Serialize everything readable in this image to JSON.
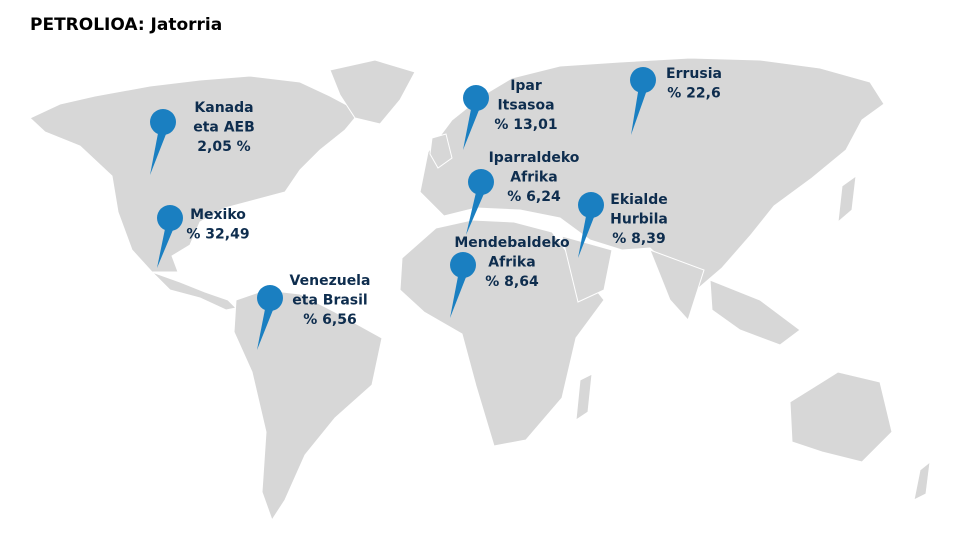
{
  "header": {
    "title": "PETROLIOA: Jatorria"
  },
  "markers": [
    {
      "name": [
        "Kanada",
        "eta AEB"
      ],
      "value": "2,05 %"
    },
    {
      "name": [
        "Mexiko"
      ],
      "value": "% 32,49"
    },
    {
      "name": [
        "Venezuela",
        "eta Brasil"
      ],
      "value": "% 6,56"
    },
    {
      "name": [
        "Ipar",
        "Itsasoa"
      ],
      "value": "% 13,01"
    },
    {
      "name": [
        "Iparraldeko",
        "Afrika"
      ],
      "value": "% 6,24"
    },
    {
      "name": [
        "Mendebaldeko",
        "Afrika"
      ],
      "value": "% 8,64"
    },
    {
      "name": [
        "Ekialde",
        "Hurbila"
      ],
      "value": "% 8,39"
    },
    {
      "name": [
        "Errusia"
      ],
      "value": "% 22,6"
    }
  ]
}
